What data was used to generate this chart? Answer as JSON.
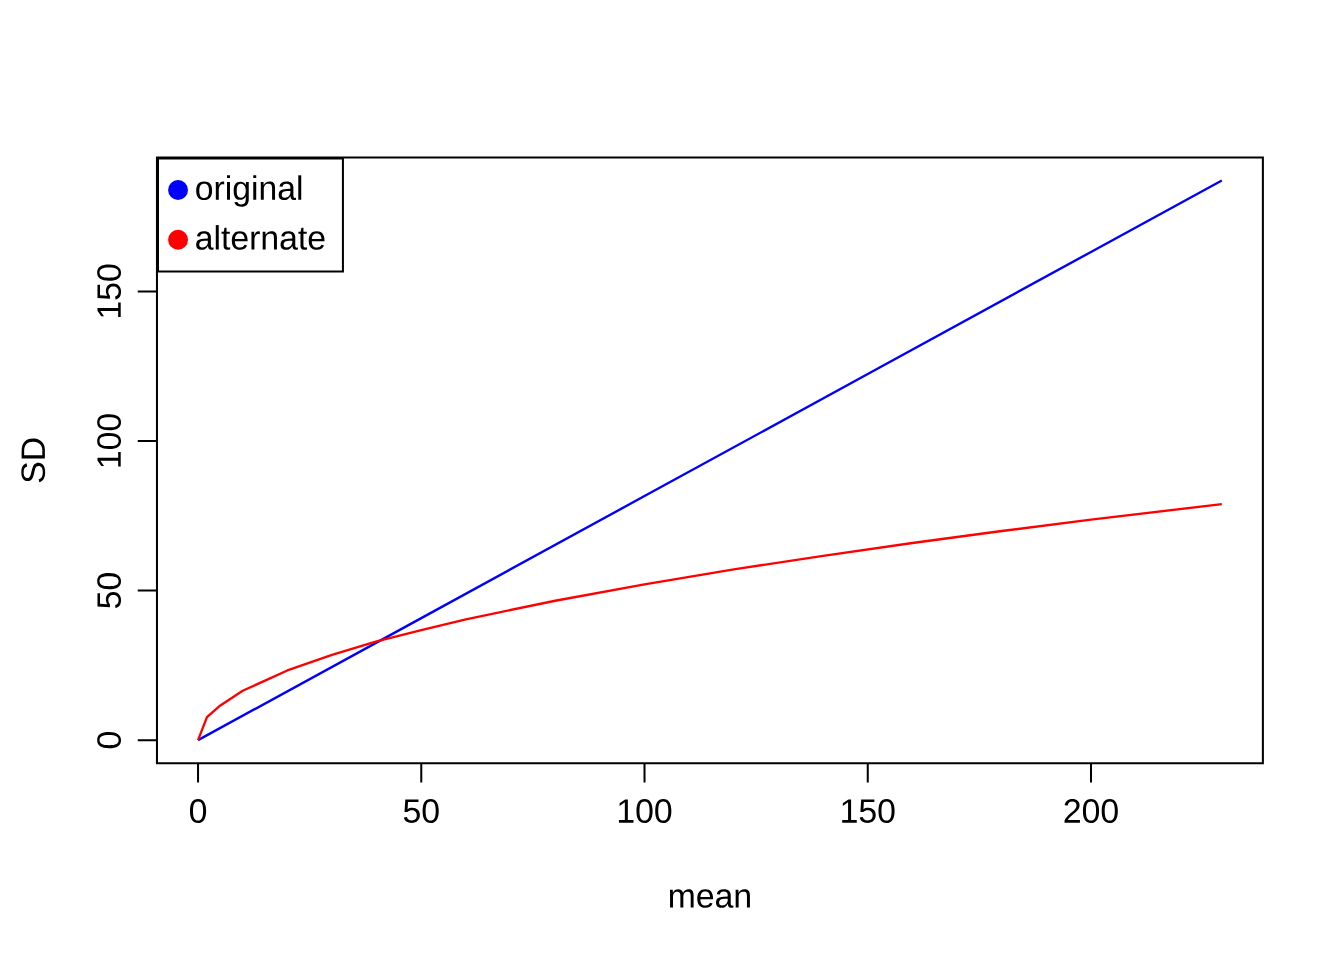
{
  "chart_data": {
    "type": "line",
    "xlabel": "mean",
    "ylabel": "SD",
    "xlim": [
      -9.2,
      238.5
    ],
    "ylim": [
      -7.7,
      194.8
    ],
    "xticks": [
      0,
      50,
      100,
      150,
      200
    ],
    "yticks": [
      0,
      50,
      100,
      150
    ],
    "legend": "top left",
    "grid": false,
    "series": [
      {
        "name": "original",
        "color": "#0000ff",
        "x": [
          0,
          50,
          100,
          150,
          200,
          229.3
        ],
        "values": [
          0,
          40.8,
          81.6,
          122.4,
          163.2,
          187.1
        ]
      },
      {
        "name": "alternate",
        "color": "#ff0000",
        "x": [
          0,
          2,
          5,
          10,
          20,
          30,
          40,
          50,
          60,
          80,
          100,
          120,
          140,
          160,
          180,
          200,
          229.3
        ],
        "values": [
          0,
          7.7,
          11.6,
          16.5,
          23.3,
          28.5,
          33,
          36.8,
          40.4,
          46.6,
          52.1,
          57.1,
          61.6,
          65.9,
          69.9,
          73.7,
          78.9
        ]
      }
    ]
  }
}
